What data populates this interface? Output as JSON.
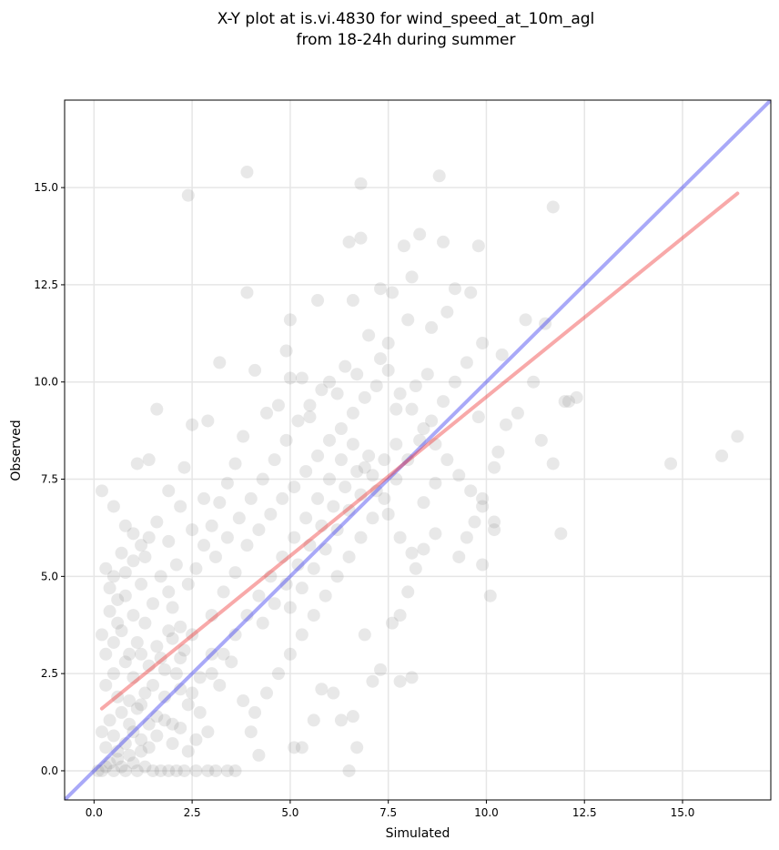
{
  "chart_data": {
    "type": "scatter",
    "title": "X-Y plot at is.vi.4830 for wind_speed_at_10m_agl",
    "subtitle": "from 18-24h during summer",
    "xlabel": "Simulated",
    "ylabel": "Observed",
    "xlim": [
      -0.75,
      17.25
    ],
    "ylim": [
      -0.75,
      17.25
    ],
    "xticks": [
      0.0,
      2.5,
      5.0,
      7.5,
      10.0,
      12.5,
      15.0
    ],
    "yticks": [
      0.0,
      2.5,
      5.0,
      7.5,
      10.0,
      12.5,
      15.0
    ],
    "xtick_labels": [
      "0.0",
      "2.5",
      "5.0",
      "7.5",
      "10.0",
      "12.5",
      "15.0"
    ],
    "ytick_labels": [
      "0.0",
      "2.5",
      "5.0",
      "7.5",
      "10.0",
      "12.5",
      "15.0"
    ],
    "grid": true,
    "point_color": "#808080",
    "point_alpha": 0.18,
    "lines": [
      {
        "role": "identity",
        "color": "#3333ee",
        "x": [
          -0.75,
          17.25
        ],
        "y": [
          -0.75,
          17.25
        ]
      },
      {
        "role": "fit",
        "color": "#ee3333",
        "x": [
          0.2,
          16.4
        ],
        "y": [
          1.6,
          14.85
        ]
      }
    ],
    "points": [
      [
        0.1,
        0.0
      ],
      [
        0.2,
        0.0
      ],
      [
        0.3,
        0.1
      ],
      [
        0.4,
        0.2
      ],
      [
        0.5,
        0.0
      ],
      [
        0.6,
        0.3
      ],
      [
        0.7,
        0.1
      ],
      [
        0.8,
        0.0
      ],
      [
        0.9,
        0.4
      ],
      [
        1.0,
        0.2
      ],
      [
        1.1,
        0.0
      ],
      [
        1.2,
        0.5
      ],
      [
        1.3,
        0.1
      ],
      [
        1.5,
        0.0
      ],
      [
        1.7,
        0.0
      ],
      [
        1.9,
        0.0
      ],
      [
        2.1,
        0.0
      ],
      [
        2.3,
        0.0
      ],
      [
        2.6,
        0.0
      ],
      [
        2.9,
        0.0
      ],
      [
        3.1,
        0.0
      ],
      [
        3.4,
        0.0
      ],
      [
        3.6,
        0.0
      ],
      [
        6.5,
        0.0
      ],
      [
        0.3,
        0.6
      ],
      [
        0.5,
        0.9
      ],
      [
        0.8,
        0.7
      ],
      [
        1.0,
        1.0
      ],
      [
        1.2,
        0.8
      ],
      [
        1.4,
        1.2
      ],
      [
        0.4,
        1.3
      ],
      [
        0.7,
        1.5
      ],
      [
        0.9,
        1.8
      ],
      [
        1.1,
        1.6
      ],
      [
        1.3,
        2.0
      ],
      [
        1.6,
        1.4
      ],
      [
        1.8,
        1.9
      ],
      [
        2.0,
        1.2
      ],
      [
        2.2,
        2.1
      ],
      [
        2.4,
        1.7
      ],
      [
        0.2,
        1.0
      ],
      [
        0.3,
        2.2
      ],
      [
        0.5,
        2.5
      ],
      [
        0.6,
        1.9
      ],
      [
        0.8,
        2.8
      ],
      [
        1.0,
        2.4
      ],
      [
        1.2,
        3.0
      ],
      [
        1.4,
        2.7
      ],
      [
        1.6,
        3.2
      ],
      [
        1.8,
        2.6
      ],
      [
        2.0,
        3.4
      ],
      [
        2.2,
        2.9
      ],
      [
        2.5,
        3.5
      ],
      [
        2.7,
        2.4
      ],
      [
        3.0,
        3.0
      ],
      [
        3.2,
        2.2
      ],
      [
        3.5,
        2.8
      ],
      [
        3.8,
        1.8
      ],
      [
        4.0,
        1.0
      ],
      [
        4.2,
        0.4
      ],
      [
        0.2,
        3.5
      ],
      [
        0.4,
        4.1
      ],
      [
        0.6,
        3.8
      ],
      [
        0.8,
        4.5
      ],
      [
        1.0,
        4.0
      ],
      [
        1.2,
        4.8
      ],
      [
        1.5,
        4.3
      ],
      [
        1.7,
        5.0
      ],
      [
        1.9,
        4.6
      ],
      [
        2.1,
        5.3
      ],
      [
        0.3,
        5.2
      ],
      [
        0.5,
        5.0
      ],
      [
        0.7,
        5.6
      ],
      [
        1.0,
        6.1
      ],
      [
        1.3,
        5.5
      ],
      [
        1.6,
        6.4
      ],
      [
        1.9,
        5.9
      ],
      [
        2.2,
        6.8
      ],
      [
        2.5,
        6.2
      ],
      [
        2.8,
        7.0
      ],
      [
        0.2,
        7.2
      ],
      [
        0.5,
        6.8
      ],
      [
        0.8,
        6.3
      ],
      [
        1.1,
        7.9
      ],
      [
        1.4,
        8.0
      ],
      [
        1.6,
        9.3
      ],
      [
        1.9,
        7.2
      ],
      [
        2.3,
        7.8
      ],
      [
        2.5,
        8.9
      ],
      [
        2.9,
        9.0
      ],
      [
        2.4,
        14.8
      ],
      [
        3.9,
        15.4
      ],
      [
        6.8,
        15.1
      ],
      [
        8.8,
        15.3
      ],
      [
        11.7,
        14.5
      ],
      [
        6.5,
        13.6
      ],
      [
        6.8,
        13.7
      ],
      [
        7.9,
        13.5
      ],
      [
        8.3,
        13.8
      ],
      [
        8.9,
        13.6
      ],
      [
        9.8,
        13.5
      ],
      [
        3.2,
        10.5
      ],
      [
        3.9,
        12.3
      ],
      [
        5.0,
        11.6
      ],
      [
        5.7,
        12.1
      ],
      [
        6.6,
        12.1
      ],
      [
        7.3,
        12.4
      ],
      [
        7.6,
        12.3
      ],
      [
        8.1,
        12.7
      ],
      [
        9.2,
        12.4
      ],
      [
        9.6,
        12.3
      ],
      [
        11.0,
        11.6
      ],
      [
        11.5,
        11.5
      ],
      [
        4.1,
        10.3
      ],
      [
        4.9,
        10.8
      ],
      [
        5.3,
        10.1
      ],
      [
        6.0,
        10.0
      ],
      [
        6.4,
        10.4
      ],
      [
        7.0,
        11.2
      ],
      [
        7.5,
        11.0
      ],
      [
        8.0,
        11.6
      ],
      [
        8.6,
        11.4
      ],
      [
        9.0,
        11.8
      ],
      [
        9.9,
        11.0
      ],
      [
        10.4,
        10.7
      ],
      [
        11.2,
        10.0
      ],
      [
        12.0,
        9.5
      ],
      [
        12.3,
        9.6
      ],
      [
        11.4,
        8.5
      ],
      [
        11.7,
        7.9
      ],
      [
        10.8,
        9.2
      ],
      [
        10.5,
        8.9
      ],
      [
        10.3,
        8.2
      ],
      [
        10.2,
        7.8
      ],
      [
        9.9,
        7.0
      ],
      [
        9.7,
        6.4
      ],
      [
        9.5,
        6.0
      ],
      [
        9.3,
        5.5
      ],
      [
        9.9,
        5.3
      ],
      [
        10.2,
        6.2
      ],
      [
        10.1,
        4.5
      ],
      [
        8.7,
        6.1
      ],
      [
        8.4,
        5.7
      ],
      [
        8.2,
        5.2
      ],
      [
        8.0,
        4.6
      ],
      [
        7.8,
        4.0
      ],
      [
        7.6,
        3.8
      ],
      [
        7.3,
        2.6
      ],
      [
        7.8,
        2.3
      ],
      [
        8.1,
        2.4
      ],
      [
        7.1,
        2.3
      ],
      [
        6.9,
        3.5
      ],
      [
        6.6,
        1.4
      ],
      [
        6.3,
        1.3
      ],
      [
        6.1,
        2.0
      ],
      [
        5.8,
        2.1
      ],
      [
        5.6,
        1.3
      ],
      [
        5.3,
        0.6
      ],
      [
        5.1,
        0.6
      ],
      [
        6.7,
        0.6
      ],
      [
        14.7,
        7.9
      ],
      [
        16.0,
        8.1
      ],
      [
        16.4,
        8.6
      ],
      [
        11.9,
        6.1
      ],
      [
        12.1,
        9.5
      ],
      [
        3.0,
        4.0
      ],
      [
        3.3,
        4.6
      ],
      [
        3.6,
        5.1
      ],
      [
        3.9,
        5.8
      ],
      [
        4.2,
        6.2
      ],
      [
        4.5,
        6.6
      ],
      [
        4.8,
        7.0
      ],
      [
        5.1,
        7.3
      ],
      [
        5.4,
        7.7
      ],
      [
        5.7,
        8.1
      ],
      [
        6.0,
        8.5
      ],
      [
        6.3,
        8.8
      ],
      [
        6.6,
        9.2
      ],
      [
        6.9,
        9.6
      ],
      [
        7.2,
        9.9
      ],
      [
        7.5,
        10.3
      ],
      [
        7.8,
        9.7
      ],
      [
        8.1,
        9.3
      ],
      [
        8.4,
        8.8
      ],
      [
        8.7,
        8.4
      ],
      [
        9.0,
        8.0
      ],
      [
        9.3,
        7.6
      ],
      [
        9.6,
        7.2
      ],
      [
        9.9,
        6.8
      ],
      [
        10.2,
        6.4
      ],
      [
        3.1,
        5.5
      ],
      [
        3.4,
        6.0
      ],
      [
        3.7,
        6.5
      ],
      [
        4.0,
        7.0
      ],
      [
        4.3,
        7.5
      ],
      [
        4.6,
        8.0
      ],
      [
        4.9,
        8.5
      ],
      [
        5.2,
        9.0
      ],
      [
        5.5,
        9.4
      ],
      [
        5.8,
        9.8
      ],
      [
        3.0,
        2.5
      ],
      [
        3.3,
        3.0
      ],
      [
        3.6,
        3.5
      ],
      [
        3.9,
        4.0
      ],
      [
        4.2,
        4.5
      ],
      [
        4.5,
        5.0
      ],
      [
        4.8,
        5.5
      ],
      [
        5.1,
        6.0
      ],
      [
        5.4,
        6.5
      ],
      [
        5.7,
        7.0
      ],
      [
        6.0,
        7.5
      ],
      [
        6.3,
        8.0
      ],
      [
        6.6,
        8.4
      ],
      [
        6.9,
        7.8
      ],
      [
        7.2,
        7.2
      ],
      [
        7.5,
        6.6
      ],
      [
        7.8,
        6.0
      ],
      [
        8.1,
        5.6
      ],
      [
        8.4,
        6.9
      ],
      [
        8.7,
        7.4
      ],
      [
        4.1,
        1.5
      ],
      [
        4.4,
        2.0
      ],
      [
        4.7,
        2.5
      ],
      [
        5.0,
        3.0
      ],
      [
        5.3,
        3.5
      ],
      [
        5.6,
        4.0
      ],
      [
        5.9,
        4.5
      ],
      [
        6.2,
        5.0
      ],
      [
        6.5,
        5.5
      ],
      [
        6.8,
        6.0
      ],
      [
        7.1,
        6.5
      ],
      [
        7.4,
        7.0
      ],
      [
        7.7,
        7.5
      ],
      [
        8.0,
        8.0
      ],
      [
        8.3,
        8.5
      ],
      [
        8.6,
        9.0
      ],
      [
        8.9,
        9.5
      ],
      [
        9.2,
        10.0
      ],
      [
        9.5,
        10.5
      ],
      [
        9.8,
        9.1
      ],
      [
        4.3,
        3.8
      ],
      [
        4.6,
        4.3
      ],
      [
        4.9,
        4.8
      ],
      [
        5.2,
        5.3
      ],
      [
        5.5,
        5.8
      ],
      [
        5.8,
        6.3
      ],
      [
        6.1,
        6.8
      ],
      [
        6.4,
        7.3
      ],
      [
        6.7,
        7.7
      ],
      [
        7.0,
        8.1
      ],
      [
        2.0,
        4.2
      ],
      [
        2.2,
        3.7
      ],
      [
        2.4,
        4.8
      ],
      [
        2.6,
        5.2
      ],
      [
        2.8,
        5.8
      ],
      [
        3.0,
        6.3
      ],
      [
        3.2,
        6.9
      ],
      [
        3.4,
        7.4
      ],
      [
        3.6,
        7.9
      ],
      [
        3.8,
        8.6
      ],
      [
        1.1,
        3.3
      ],
      [
        1.3,
        3.8
      ],
      [
        1.5,
        2.2
      ],
      [
        1.7,
        2.9
      ],
      [
        1.9,
        3.6
      ],
      [
        2.1,
        2.5
      ],
      [
        2.3,
        3.1
      ],
      [
        2.5,
        2.0
      ],
      [
        2.7,
        1.5
      ],
      [
        2.9,
        1.0
      ],
      [
        0.6,
        0.5
      ],
      [
        0.9,
        1.2
      ],
      [
        1.2,
        1.7
      ],
      [
        1.4,
        0.6
      ],
      [
        1.6,
        0.9
      ],
      [
        1.8,
        1.3
      ],
      [
        2.0,
        0.7
      ],
      [
        2.2,
        1.1
      ],
      [
        2.4,
        0.5
      ],
      [
        2.6,
        0.8
      ],
      [
        0.3,
        3.0
      ],
      [
        0.5,
        3.3
      ],
      [
        0.7,
        3.6
      ],
      [
        0.9,
        3.0
      ],
      [
        0.4,
        4.7
      ],
      [
        0.6,
        4.4
      ],
      [
        0.8,
        5.1
      ],
      [
        1.0,
        5.4
      ],
      [
        1.2,
        5.8
      ],
      [
        1.4,
        6.0
      ],
      [
        5.0,
        4.2
      ],
      [
        5.3,
        4.7
      ],
      [
        5.6,
        5.2
      ],
      [
        5.9,
        5.7
      ],
      [
        6.2,
        6.2
      ],
      [
        6.5,
        6.7
      ],
      [
        6.8,
        7.1
      ],
      [
        7.1,
        7.6
      ],
      [
        7.4,
        8.0
      ],
      [
        7.7,
        8.4
      ],
      [
        4.4,
        9.2
      ],
      [
        4.7,
        9.4
      ],
      [
        5.0,
        10.1
      ],
      [
        5.5,
        9.1
      ],
      [
        6.2,
        9.7
      ],
      [
        6.7,
        10.2
      ],
      [
        7.3,
        10.6
      ],
      [
        7.7,
        9.3
      ],
      [
        8.2,
        9.9
      ],
      [
        8.5,
        10.2
      ]
    ]
  }
}
